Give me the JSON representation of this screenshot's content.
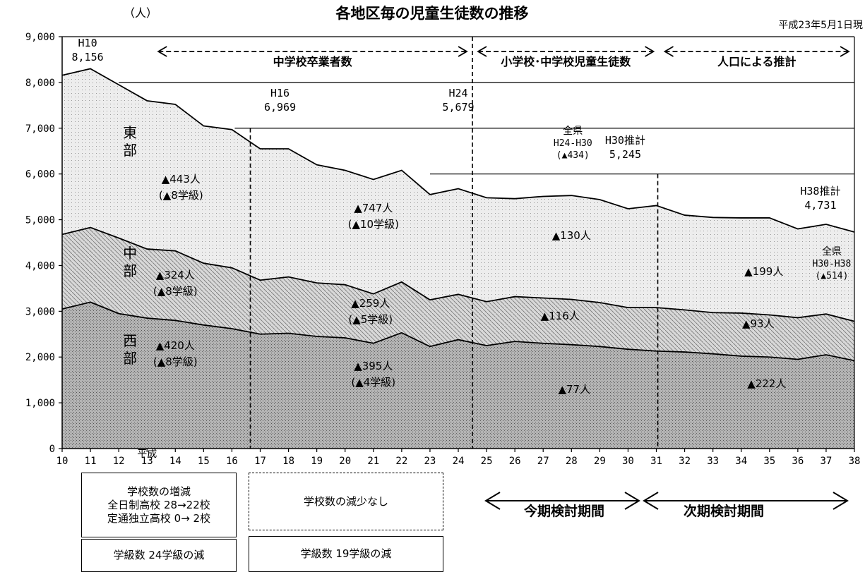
{
  "chart_data": {
    "type": "area",
    "title": "各地区毎の児童生徒数の推移",
    "unit_label": "（人）",
    "date_note": "平成23年5月1日現",
    "x_era_label": "平成",
    "x": [
      10,
      11,
      12,
      13,
      14,
      15,
      16,
      17,
      18,
      19,
      20,
      21,
      22,
      23,
      24,
      25,
      26,
      27,
      28,
      29,
      30,
      31,
      32,
      33,
      34,
      35,
      36,
      37,
      38
    ],
    "xlim": [
      10,
      38
    ],
    "ylim": [
      0,
      9000
    ],
    "yticks": [
      "0",
      "1,000",
      "2,000",
      "3,000",
      "4,000",
      "5,000",
      "6,000",
      "7,000",
      "8,000",
      "9,000"
    ],
    "grid": "horizontal lines in the H24–H38 region",
    "series": [
      {
        "name": "西部",
        "stacking": "bottom layer",
        "cumulative_values": [
          3050,
          3200,
          2950,
          2850,
          2800,
          2700,
          2620,
          2500,
          2520,
          2450,
          2420,
          2300,
          2530,
          2230,
          2380,
          2250,
          2340,
          2300,
          2270,
          2230,
          2170,
          2130,
          2110,
          2070,
          2020,
          2000,
          1950,
          2050,
          1920
        ]
      },
      {
        "name": "中部",
        "stacking": "middle layer (top edge = 西部+中部)",
        "cumulative_values": [
          4680,
          4830,
          4600,
          4360,
          4320,
          4050,
          3950,
          3680,
          3750,
          3620,
          3580,
          3380,
          3640,
          3250,
          3370,
          3210,
          3320,
          3290,
          3260,
          3190,
          3080,
          3080,
          3030,
          2970,
          2960,
          2920,
          2860,
          2940,
          2780
        ]
      },
      {
        "name": "東部",
        "stacking": "top layer (top edge = total)",
        "cumulative_values": [
          8156,
          8300,
          7950,
          7600,
          7520,
          7050,
          6969,
          6550,
          6550,
          6200,
          6080,
          5880,
          6080,
          5550,
          5679,
          5480,
          5460,
          5510,
          5530,
          5440,
          5240,
          5310,
          5100,
          5050,
          5040,
          5040,
          4800,
          4900,
          4731
        ]
      }
    ],
    "dividers": [
      {
        "x": 16.65,
        "extent": "to the H16 total line"
      },
      {
        "x": 24.5,
        "extent": "to the top"
      },
      {
        "x": 31.05,
        "extent": "to the H30 estimate line"
      }
    ],
    "period_arrows": [
      {
        "label": "中学校卒業者数",
        "from": 13.2,
        "to": 24.5
      },
      {
        "label": "小学校･中学校児童生徒数",
        "from": 24.5,
        "to": 31.1
      },
      {
        "label": "人口による推計",
        "from": 31.1,
        "to": 38
      }
    ],
    "total_annotations": [
      {
        "year": "H10",
        "value": "8,156"
      },
      {
        "year": "H16",
        "value": "6,969"
      },
      {
        "year": "H24",
        "value": "5,679"
      },
      {
        "year": "H30推計",
        "value": "5,245"
      },
      {
        "year": "H38推計",
        "value": "4,731"
      }
    ],
    "prefecture_notes": [
      {
        "label": "全県",
        "range": "H24-H30",
        "change": "(▲434)"
      },
      {
        "label": "全県",
        "range": "H30-H38",
        "change": "(▲514)"
      }
    ],
    "region_labels": [
      {
        "text": "東部",
        "chars": [
          "東",
          "部"
        ]
      },
      {
        "text": "中部",
        "chars": [
          "中",
          "部"
        ]
      },
      {
        "text": "西部",
        "chars": [
          "西",
          "部"
        ]
      }
    ],
    "change_annotations": [
      {
        "region": "東部",
        "period": "H10-H16",
        "students": "▲443人",
        "classes": "(▲8学級)"
      },
      {
        "region": "東部",
        "period": "H16-H24",
        "students": "▲747人",
        "classes": "(▲10学級)"
      },
      {
        "region": "東部",
        "period": "H24-H31",
        "students": "▲130人"
      },
      {
        "region": "東部",
        "period": "H31-H38",
        "students": "▲199人"
      },
      {
        "region": "中部",
        "period": "H10-H16",
        "students": "▲324人",
        "classes": "(▲8学級)"
      },
      {
        "region": "中部",
        "period": "H16-H24",
        "students": "▲259人",
        "classes": "(▲5学級)"
      },
      {
        "region": "中部",
        "period": "H24-H31",
        "students": "▲116人"
      },
      {
        "region": "中部",
        "period": "H31-H38",
        "students": "▲93人"
      },
      {
        "region": "西部",
        "period": "H10-H16",
        "students": "▲420人",
        "classes": "(▲8学級)"
      },
      {
        "region": "西部",
        "period": "H16-H24",
        "students": "▲395人",
        "classes": "(▲4学級)"
      },
      {
        "region": "西部",
        "period": "H24-H31",
        "students": "▲77人"
      },
      {
        "region": "西部",
        "period": "H31-H38",
        "students": "▲222人"
      }
    ]
  },
  "boxes": {
    "school_change": [
      "学校数の増減",
      "全日制高校 28→22校",
      "定通独立高校 0→ 2校"
    ],
    "no_school_decrease": "学校数の減少なし",
    "class_change_1": "学級数 24学級の減",
    "class_change_2": "学級数 19学級の減"
  },
  "periods": {
    "current": "今期検討期間",
    "next": "次期検討期間"
  },
  "colors": {
    "west_fill": "#b4b4b4",
    "middle_fill": "#d6d6d6",
    "east_fill": "#ececec"
  }
}
